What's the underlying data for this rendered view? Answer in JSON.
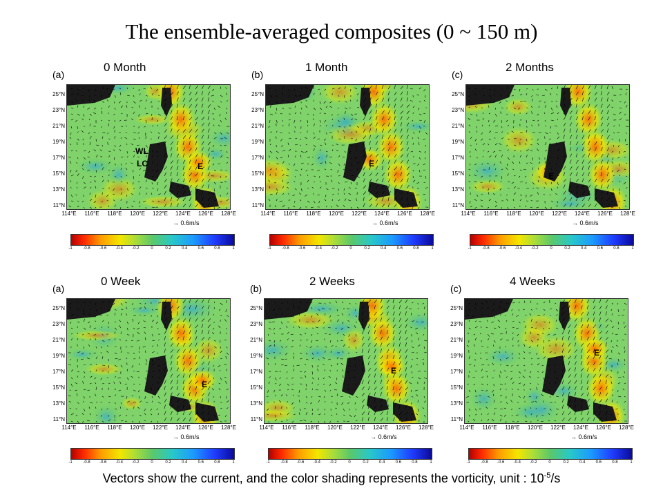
{
  "title": "The ensemble-averaged composites (0 ~ 150 m)",
  "caption_prefix": "Vectors show the current, and the color shading represents the vorticity, unit : 10",
  "caption_exp": "-5",
  "caption_suffix": "/s",
  "y_ticks": [
    "25°N",
    "23°N",
    "21°N",
    "19°N",
    "17°N",
    "15°N",
    "13°N",
    "11°N"
  ],
  "x_ticks": [
    "114°E",
    "116°E",
    "118°E",
    "120°E",
    "122°E",
    "124°E",
    "126°E",
    "128°E"
  ],
  "vector_scale": "0.6m/s",
  "colorbar": {
    "ticks": [
      "-1",
      "-0.8",
      "-0.6",
      "-0.4",
      "-0.2",
      "0",
      "0.2",
      "0.4",
      "0.6",
      "0.8",
      "1"
    ],
    "colors": [
      "#b40000",
      "#ff2a00",
      "#ff9a00",
      "#f3e600",
      "#a6dc3c",
      "#5bc86a",
      "#28c8c8",
      "#1c9aff",
      "#1f3cff",
      "#0a0a9a"
    ]
  },
  "panels": [
    {
      "title": "0 Month",
      "label": "(a)",
      "eddy": "E",
      "extra": [
        "WL",
        "LC"
      ]
    },
    {
      "title": "1 Month",
      "label": "(b)",
      "eddy": "E",
      "extra": []
    },
    {
      "title": "2 Months",
      "label": "(c)",
      "eddy": "E",
      "extra": []
    },
    {
      "title": "0 Week",
      "label": "(a)",
      "eddy": "E",
      "extra": []
    },
    {
      "title": "2 Weeks",
      "label": "(b)",
      "eddy": "E",
      "extra": []
    },
    {
      "title": "4 Weeks",
      "label": "(c)",
      "eddy": "E",
      "extra": []
    }
  ]
}
